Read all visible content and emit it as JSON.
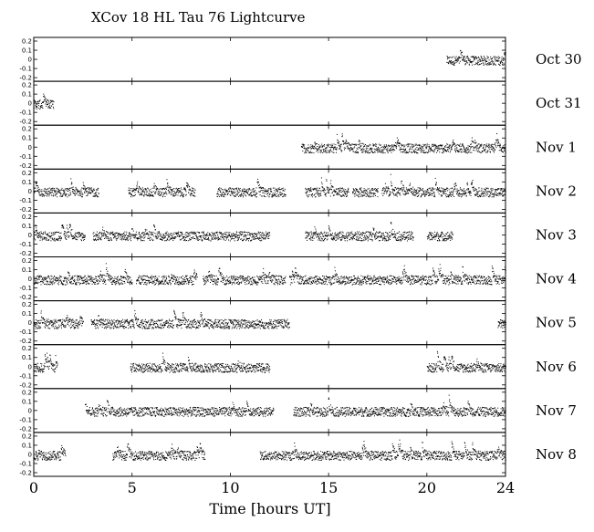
{
  "chart_data": {
    "type": "scatter",
    "title": "XCov 18 HL Tau 76 Lightcurve",
    "xlabel": "Time [hours UT]",
    "ylabel": "",
    "xlim": [
      0,
      24
    ],
    "xticks": [
      0,
      5,
      10,
      15,
      20,
      24
    ],
    "ylim": [
      -0.2,
      0.2
    ],
    "yticks": [
      0.2,
      0.1,
      0,
      -0.1,
      -0.2
    ],
    "ytick_labels": [
      "0.2",
      "0.1",
      "0",
      "-0.1",
      "-0.2"
    ],
    "grid": false,
    "panels": [
      {
        "name": "Oct 30",
        "segments": [
          [
            21.0,
            24.0
          ]
        ]
      },
      {
        "name": "Oct 31",
        "segments": [
          [
            0.0,
            1.0
          ]
        ]
      },
      {
        "name": "Nov 1",
        "segments": [
          [
            13.6,
            24.0
          ]
        ]
      },
      {
        "name": "Nov 2",
        "segments": [
          [
            0.0,
            3.3
          ],
          [
            4.8,
            8.2
          ],
          [
            9.3,
            12.8
          ],
          [
            13.8,
            16.0
          ],
          [
            16.2,
            17.5
          ],
          [
            17.7,
            24.0
          ]
        ]
      },
      {
        "name": "Nov 3",
        "segments": [
          [
            0.0,
            2.6
          ],
          [
            3.0,
            12.0
          ],
          [
            13.8,
            19.3
          ],
          [
            20.0,
            21.3
          ]
        ]
      },
      {
        "name": "Nov 4",
        "segments": [
          [
            0.0,
            5.0
          ],
          [
            5.2,
            8.3
          ],
          [
            8.6,
            12.8
          ],
          [
            13.0,
            24.0
          ]
        ]
      },
      {
        "name": "Nov 5",
        "segments": [
          [
            0.0,
            2.5
          ],
          [
            2.9,
            13.0
          ],
          [
            23.6,
            24.0
          ]
        ]
      },
      {
        "name": "Nov 6",
        "segments": [
          [
            0.0,
            1.2
          ],
          [
            4.9,
            12.0
          ],
          [
            20.0,
            24.0
          ]
        ]
      },
      {
        "name": "Nov 7",
        "segments": [
          [
            2.6,
            12.2
          ],
          [
            13.2,
            24.0
          ]
        ]
      },
      {
        "name": "Nov 8",
        "segments": [
          [
            0.0,
            1.6
          ],
          [
            4.0,
            8.7
          ],
          [
            11.5,
            24.0
          ]
        ]
      }
    ],
    "noise_amplitude": 0.05,
    "flare_amplitude": 0.18
  }
}
